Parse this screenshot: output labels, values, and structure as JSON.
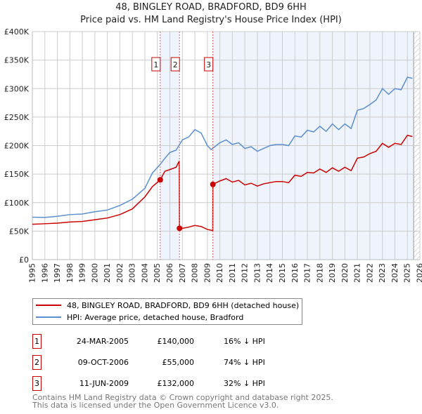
{
  "title_line1": "48, BINGLEY ROAD, BRADFORD, BD9 6HH",
  "title_line2": "Price paid vs. HM Land Registry's House Price Index (HPI)",
  "colors": {
    "property": "#cc0000",
    "hpi": "#5b8fd0",
    "shade": "#eef3fc",
    "grid": "#cccccc"
  },
  "chart_data": {
    "type": "line",
    "title": "48, BINGLEY ROAD, BRADFORD, BD9 6HH — Price paid vs. HM Land Registry's House Price Index (HPI)",
    "xlim": [
      1995,
      2026
    ],
    "ylim": [
      0,
      400000
    ],
    "x_ticks": [
      "1995",
      "1996",
      "1997",
      "1998",
      "1999",
      "2000",
      "2001",
      "2002",
      "2003",
      "2004",
      "2005",
      "2006",
      "2007",
      "2008",
      "2009",
      "2010",
      "2011",
      "2012",
      "2013",
      "2014",
      "2015",
      "2016",
      "2017",
      "2018",
      "2019",
      "2020",
      "2021",
      "2022",
      "2023",
      "2024",
      "2025",
      "2026"
    ],
    "y_ticks": [
      {
        "v": 0,
        "label": "£0"
      },
      {
        "v": 50000,
        "label": "£50K"
      },
      {
        "v": 100000,
        "label": "£100K"
      },
      {
        "v": 150000,
        "label": "£150K"
      },
      {
        "v": 200000,
        "label": "£200K"
      },
      {
        "v": 250000,
        "label": "£250K"
      },
      {
        "v": 300000,
        "label": "£300K"
      },
      {
        "v": 350000,
        "label": "£350K"
      },
      {
        "v": 400000,
        "label": "£400K"
      }
    ],
    "grid": true,
    "shaded_ranges": [
      [
        2005.23,
        2006.77
      ],
      [
        2009.44,
        2025.5
      ]
    ],
    "hatched_from": 2025.5,
    "series": [
      {
        "name": "48, BINGLEY ROAD, BRADFORD, BD9 6HH (detached house)",
        "color": "#cc0000",
        "x": [
          1995,
          1996,
          1997,
          1998,
          1999,
          2000,
          2001,
          2002,
          2003,
          2004,
          2004.6,
          2005.23,
          2005.6,
          2006,
          2006.5,
          2006.75,
          2006.77,
          2007,
          2007.5,
          2008,
          2008.5,
          2009,
          2009.43,
          2009.44,
          2010,
          2010.5,
          2011,
          2011.5,
          2012,
          2012.5,
          2013,
          2013.5,
          2014,
          2014.5,
          2015,
          2015.5,
          2016,
          2016.5,
          2017,
          2017.5,
          2018,
          2018.5,
          2019,
          2019.5,
          2020,
          2020.5,
          2021,
          2021.5,
          2022,
          2022.5,
          2023,
          2023.5,
          2024,
          2024.5,
          2025,
          2025.4
        ],
        "y": [
          62000,
          63000,
          64000,
          66000,
          67000,
          70000,
          73000,
          79000,
          89000,
          110000,
          128000,
          140000,
          155000,
          158000,
          162000,
          173000,
          55000,
          55000,
          57000,
          60000,
          58000,
          53000,
          51000,
          132000,
          138000,
          142000,
          136000,
          139000,
          131000,
          134000,
          129000,
          133000,
          135000,
          137000,
          137000,
          135000,
          148000,
          146000,
          153000,
          152000,
          159000,
          153000,
          161000,
          155000,
          162000,
          156000,
          178000,
          180000,
          186000,
          190000,
          204000,
          197000,
          204000,
          202000,
          218000,
          216000
        ]
      },
      {
        "name": "HPI: Average price, detached house, Bradford",
        "color": "#5b8fd0",
        "x": [
          1995,
          1996,
          1997,
          1998,
          1999,
          2000,
          2001,
          2002,
          2003,
          2004,
          2004.6,
          2005.23,
          2005.5,
          2006,
          2006.5,
          2007,
          2007.5,
          2008,
          2008.5,
          2009,
          2009.3,
          2010,
          2010.5,
          2011,
          2011.5,
          2012,
          2012.5,
          2013,
          2013.5,
          2014,
          2014.5,
          2015,
          2015.5,
          2016,
          2016.5,
          2017,
          2017.5,
          2018,
          2018.5,
          2019,
          2019.5,
          2020,
          2020.5,
          2021,
          2021.5,
          2022,
          2022.5,
          2023,
          2023.5,
          2024,
          2024.5,
          2025,
          2025.4
        ],
        "y": [
          74500,
          74000,
          76000,
          79000,
          80000,
          84000,
          87000,
          95000,
          106000,
          125000,
          152000,
          167000,
          175000,
          188000,
          192000,
          210000,
          215000,
          228000,
          222000,
          200000,
          193000,
          205000,
          210000,
          202000,
          205000,
          195000,
          198000,
          190000,
          195000,
          200000,
          202000,
          202000,
          200000,
          217000,
          215000,
          227000,
          224000,
          234000,
          225000,
          238000,
          228000,
          238000,
          230000,
          262000,
          265000,
          272000,
          280000,
          300000,
          290000,
          300000,
          298000,
          320000,
          318000
        ]
      }
    ],
    "sales": [
      {
        "id": "1",
        "x": 2005.23,
        "y": 140000
      },
      {
        "id": "2",
        "x": 2006.77,
        "y": 55000
      },
      {
        "id": "3",
        "x": 2009.44,
        "y": 132000
      }
    ],
    "legend_position": "below"
  },
  "legend": {
    "property": "48, BINGLEY ROAD, BRADFORD, BD9 6HH (detached house)",
    "hpi": "HPI: Average price, detached house, Bradford"
  },
  "transactions": [
    {
      "num": "1",
      "date": "24-MAR-2005",
      "price": "£140,000",
      "hpi": "16% ↓ HPI"
    },
    {
      "num": "2",
      "date": "09-OCT-2006",
      "price": "£55,000",
      "hpi": "74% ↓ HPI"
    },
    {
      "num": "3",
      "date": "11-JUN-2009",
      "price": "£132,000",
      "hpi": "32% ↓ HPI"
    }
  ],
  "footer": {
    "line1": "Contains HM Land Registry data © Crown copyright and database right 2025.",
    "line2": "This data is licensed under the Open Government Licence v3.0."
  }
}
